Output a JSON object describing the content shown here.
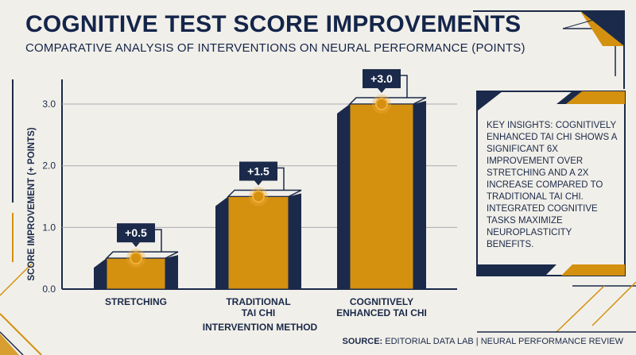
{
  "header": {
    "title": "COGNITIVE TEST SCORE IMPROVEMENTS",
    "subtitle": "COMPARATIVE ANALYSIS OF INTERVENTIONS ON NEURAL PERFORMANCE (POINTS)"
  },
  "insight": {
    "text": "KEY INSIGHTS: COGNITIVELY ENHANCED TAI CHI SHOWS A SIGNIFICANT 6X IMPROVEMENT OVER STRETCHING AND A 2X INCREASE COMPARED TO TRADITIONAL TAI CHI. INTEGRATED COGNITIVE TASKS MAXIMIZE NEUROPLASTICITY BENEFITS."
  },
  "footer": {
    "source_label": "SOURCE:",
    "source_text": "EDITORIAL DATA LAB | NEURAL PERFORMANCE REVIEW"
  },
  "colors": {
    "navy": "#1b2a4a",
    "gold": "#d4900f",
    "marker": "#f2b03a",
    "background": "#f1efe9"
  },
  "chart_data": {
    "type": "bar",
    "categories": [
      [
        "STRETCHING"
      ],
      [
        "TRADITIONAL",
        "TAI CHI"
      ],
      [
        "COGNITIVELY",
        "ENHANCED TAI CHI"
      ]
    ],
    "values": [
      0.5,
      1.5,
      3.0
    ],
    "data_labels": [
      "+0.5",
      "+1.5",
      "+3.0"
    ],
    "xlabel": "INTERVENTION METHOD",
    "ylabel": "SCORE IMPROVEMENT (+ POINTS)",
    "ylim": [
      0,
      3.4
    ],
    "yticks": [
      "0.0",
      "1.0",
      "2.0",
      "3.0"
    ],
    "ytick_values": [
      0,
      1,
      2,
      3
    ],
    "grid": true
  }
}
